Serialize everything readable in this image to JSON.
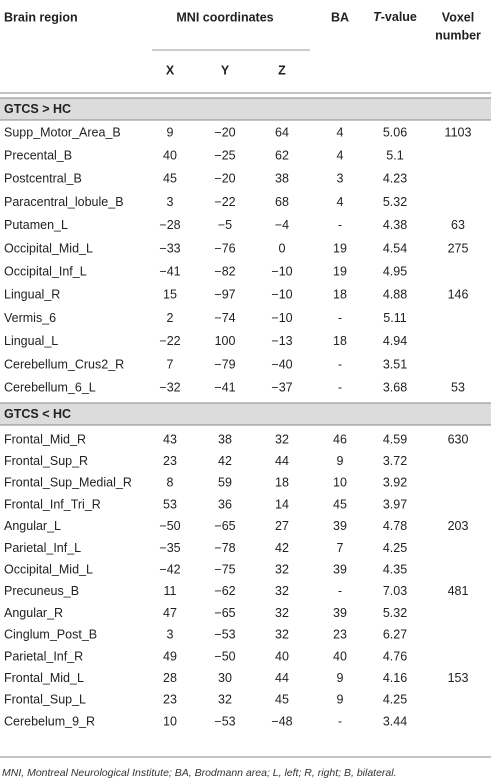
{
  "header": {
    "region": "Brain region",
    "mni": "MNI coordinates",
    "ba": "BA",
    "t_italic": "T",
    "t_rest": "-value",
    "voxel_1": "Voxel",
    "voxel_2": "number",
    "x": "X",
    "y": "Y",
    "z": "Z"
  },
  "sections": [
    {
      "label": "GTCS > HC",
      "rows": [
        [
          "Supp_Motor_Area_B",
          "9",
          "−20",
          "64",
          "4",
          "5.06",
          "1103"
        ],
        [
          "Precental_B",
          "40",
          "−25",
          "62",
          "4",
          "5.1"
        ],
        [
          "Postcentral_B",
          "45",
          "−20",
          "38",
          "3",
          "4.23"
        ],
        [
          "Paracentral_lobule_B",
          "3",
          "−22",
          "68",
          "4",
          "5.32"
        ],
        [
          "Putamen_L",
          "−28",
          "−5",
          "−4",
          "-",
          "4.38",
          "63"
        ],
        [
          "Occipital_Mid_L",
          "−33",
          "−76",
          "0",
          "19",
          "4.54",
          "275"
        ],
        [
          "Occipital_Inf_L",
          "−41",
          "−82",
          "−10",
          "19",
          "4.95"
        ],
        [
          "Lingual_R",
          "15",
          "−97",
          "−10",
          "18",
          "4.88",
          "146"
        ],
        [
          "Vermis_6",
          "2",
          "−74",
          "−10",
          "-",
          "5.11"
        ],
        [
          "Lingual_L",
          "−22",
          "100",
          "−13",
          "18",
          "4.94"
        ],
        [
          "Cerebellum_Crus2_R",
          "7",
          "−79",
          "−40",
          "-",
          "3.51"
        ],
        [
          "Cerebellum_6_L",
          "−32",
          "−41",
          "−37",
          "-",
          "3.68",
          "53"
        ]
      ]
    },
    {
      "label": "GTCS < HC",
      "rows": [
        [
          "Frontal_Mid_R",
          "43",
          "38",
          "32",
          "46",
          "4.59",
          "630"
        ],
        [
          "Frontal_Sup_R",
          "23",
          "42",
          "44",
          "9",
          "3.72"
        ],
        [
          "Frontal_Sup_Medial_R",
          "8",
          "59",
          "18",
          "10",
          "3.92"
        ],
        [
          "Frontal_Inf_Tri_R",
          "53",
          "36",
          "14",
          "45",
          "3.97"
        ],
        [
          "Angular_L",
          "−50",
          "−65",
          "27",
          "39",
          "4.78",
          "203"
        ],
        [
          "Parietal_Inf_L",
          "−35",
          "−78",
          "42",
          "7",
          "4.25"
        ],
        [
          "Occipital_Mid_L",
          "−42",
          "−75",
          "32",
          "39",
          "4.35"
        ],
        [
          "Precuneus_B",
          "11",
          "−62",
          "32",
          "-",
          "7.03",
          "481"
        ],
        [
          "Angular_R",
          "47",
          "−65",
          "32",
          "39",
          "5.32"
        ],
        [
          "Cinglum_Post_B",
          "3",
          "−53",
          "32",
          "23",
          "6.27"
        ],
        [
          "Parietal_Inf_R",
          "49",
          "−50",
          "40",
          "40",
          "4.76"
        ],
        [
          "Frontal_Mid_L",
          "28",
          "30",
          "44",
          "9",
          "4.16",
          "153"
        ],
        [
          "Frontal_Sup_L",
          "23",
          "32",
          "45",
          "9",
          "4.25"
        ],
        [
          "Cerebelum_9_R",
          "10",
          "−53",
          "−48",
          "-",
          "3.44"
        ]
      ]
    }
  ],
  "footnote": "MNI, Montreal Neurological Institute; BA, Brodmann area; L, left; R, right; B, bilateral."
}
